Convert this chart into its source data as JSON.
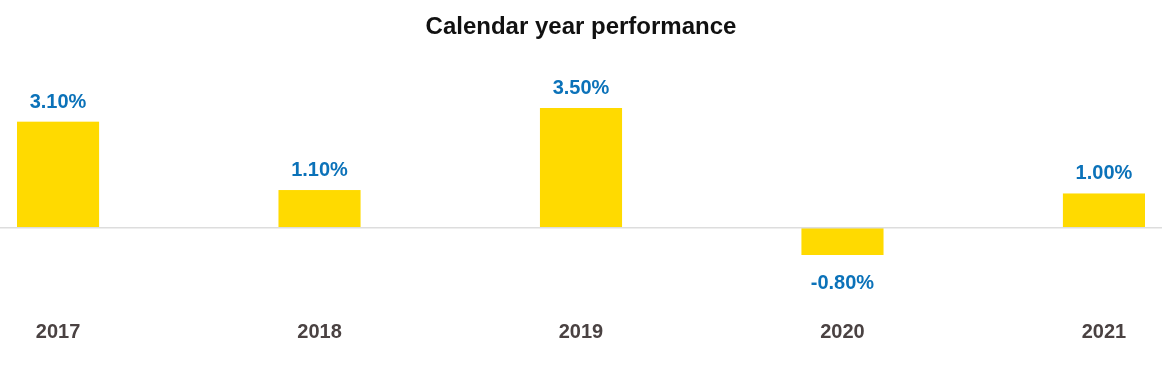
{
  "chart_data": {
    "type": "bar",
    "title": "Calendar year performance",
    "categories": [
      "2017",
      "2018",
      "2019",
      "2020",
      "2021"
    ],
    "values": [
      3.1,
      1.1,
      3.5,
      -0.8,
      1.0
    ],
    "value_labels": [
      "3.10%",
      "1.10%",
      "3.50%",
      "-0.80%",
      "1.00%"
    ],
    "color": "#ffda00",
    "grid": false
  }
}
